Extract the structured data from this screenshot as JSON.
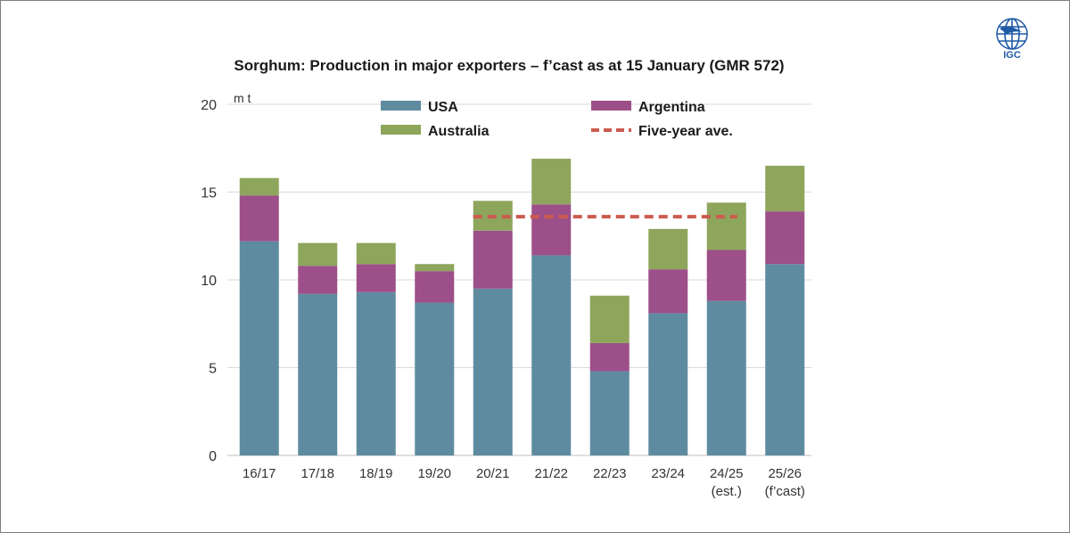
{
  "chart_data": {
    "type": "bar",
    "stacked": true,
    "title": "Sorghum: Production in major exporters – f’cast as at 15 January (GMR 572)",
    "unit_label": "m t",
    "categories": [
      "16/17",
      "17/18",
      "18/19",
      "19/20",
      "20/21",
      "21/22",
      "22/23",
      "23/24",
      "24/25",
      "25/26"
    ],
    "category_sublabels": [
      "",
      "",
      "",
      "",
      "",
      "",
      "",
      "",
      "(est.)",
      "(f’cast)"
    ],
    "series": [
      {
        "name": "USA",
        "color": "#5f8ba0",
        "values": [
          12.2,
          9.2,
          9.3,
          8.7,
          9.5,
          11.4,
          4.8,
          8.1,
          8.8,
          10.9
        ]
      },
      {
        "name": "Argentina",
        "color": "#9c4f88",
        "values": [
          2.6,
          1.6,
          1.6,
          1.8,
          3.3,
          2.9,
          1.6,
          2.5,
          2.9,
          3.0
        ]
      },
      {
        "name": "Australia",
        "color": "#8ea55c",
        "values": [
          1.0,
          1.3,
          1.2,
          0.4,
          1.7,
          2.6,
          2.7,
          2.3,
          2.7,
          2.6
        ]
      }
    ],
    "reference_line": {
      "name": "Five-year ave.",
      "color": "#cc5a4f",
      "value": 13.6,
      "from": "20/21",
      "to": "24/25"
    },
    "ylim": [
      0,
      20
    ],
    "yticks": [
      0,
      5,
      10,
      15,
      20
    ],
    "grid": true,
    "legend": "top"
  },
  "logo": {
    "text": "IGC"
  }
}
